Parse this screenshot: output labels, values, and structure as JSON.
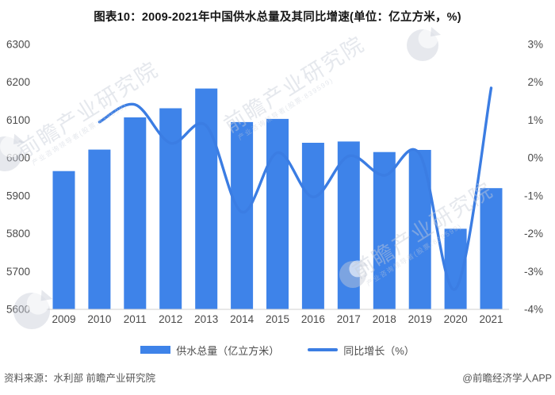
{
  "chart_data": {
    "type": "combo",
    "title": "图表10：2009-2021年中国供水总量及其同比增速(单位：亿立方米，%)",
    "categories": [
      "2009",
      "2010",
      "2011",
      "2012",
      "2013",
      "2014",
      "2015",
      "2016",
      "2017",
      "2018",
      "2019",
      "2020",
      "2021"
    ],
    "series": [
      {
        "name": "供水总量（亿立方米）",
        "type": "bar",
        "axis": "left",
        "values": [
          5965.2,
          6022.0,
          6107.2,
          6131.2,
          6183.4,
          6094.9,
          6103.2,
          6040.2,
          6043.4,
          6015.5,
          6021.2,
          5812.9,
          5920.2
        ]
      },
      {
        "name": "同比增长（%）",
        "type": "line",
        "axis": "right",
        "values": [
          null,
          0.95,
          1.41,
          0.39,
          0.85,
          -1.43,
          0.14,
          -1.03,
          0.05,
          -0.46,
          0.09,
          -3.46,
          1.85
        ]
      }
    ],
    "left_axis": {
      "min": 5600,
      "max": 6300,
      "tick_values": [
        6300,
        6200,
        6100,
        6000,
        5900,
        5800,
        5700,
        5600
      ]
    },
    "right_axis": {
      "min": -4,
      "max": 3,
      "tick_values": [
        3,
        2,
        1,
        0,
        -1,
        -2,
        -3,
        -4
      ],
      "tick_suffix": "%"
    },
    "grid": false,
    "legend_position": "bottom"
  },
  "footer": {
    "source": "资料来源：水利部 前瞻产业研究院",
    "copyright": "@前瞻经济学人APP"
  },
  "watermark": {
    "text": "前瞻产业研究院",
    "subtext": "产业咨询领导者(股票:839599)"
  },
  "colors": {
    "bar": "#3E83E9",
    "line": "#3B7DE3",
    "axis_text": "#4a4a4a",
    "baseline": "#d2d2d2",
    "watermark": "#c7cdd8"
  }
}
